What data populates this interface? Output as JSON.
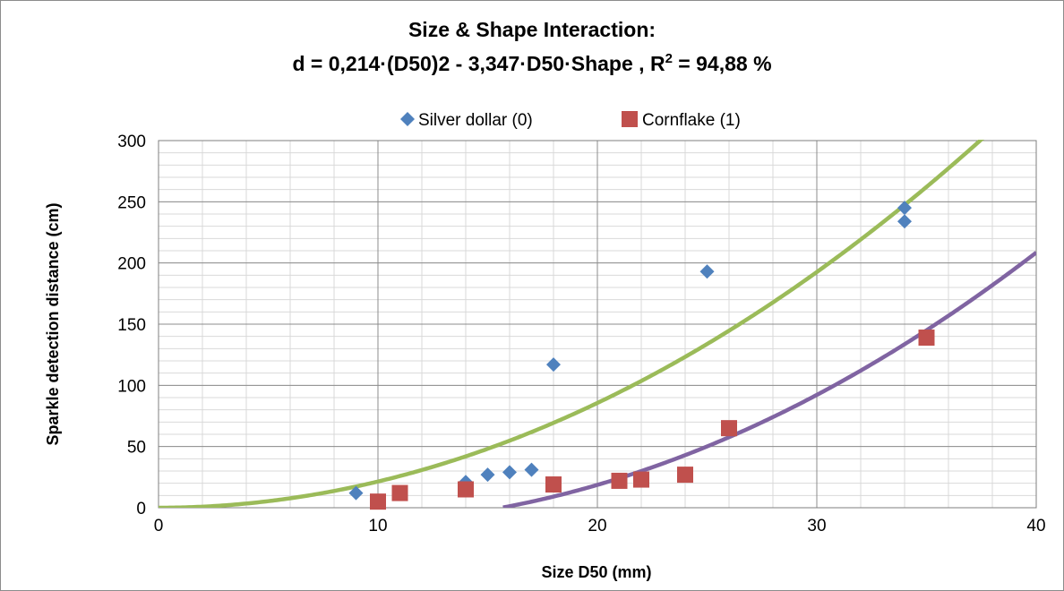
{
  "chart_data": {
    "type": "scatter",
    "title_line1": "Size & Shape Interaction:",
    "title_line2_main": "d = 0,214·(D50)2 - 3,347·D50·Shape , R",
    "title_line2_sup": "2",
    "title_line2_end": " = 94,88 %",
    "xlabel": "Size D50 (mm)",
    "ylabel": "Sparkle detection distance (cm)",
    "xlim": [
      0,
      40
    ],
    "ylim": [
      0,
      300
    ],
    "xticks": [
      0,
      10,
      20,
      30,
      40
    ],
    "yticks": [
      0,
      50,
      100,
      150,
      200,
      250,
      300
    ],
    "grid": true,
    "legend_position": "top",
    "series": [
      {
        "name": "Silver dollar (0)",
        "marker": "diamond",
        "color": "#4f81bd",
        "points": [
          [
            9,
            12
          ],
          [
            14,
            21
          ],
          [
            15,
            27
          ],
          [
            16,
            29
          ],
          [
            17,
            31
          ],
          [
            18,
            117
          ],
          [
            25,
            193
          ],
          [
            34,
            245
          ],
          [
            34,
            234
          ]
        ]
      },
      {
        "name": "Cornflake (1)",
        "marker": "square",
        "color": "#c0504d",
        "points": [
          [
            10,
            5
          ],
          [
            11,
            12
          ],
          [
            14,
            15
          ],
          [
            18,
            19
          ],
          [
            21,
            22
          ],
          [
            22,
            23
          ],
          [
            24,
            27
          ],
          [
            26,
            65
          ],
          [
            35,
            139
          ]
        ]
      }
    ],
    "fit_curves": [
      {
        "series": "Silver dollar (0)",
        "color": "#9bbb59",
        "a": 0.214,
        "b": 0
      },
      {
        "series": "Cornflake (1)",
        "color": "#8064a2",
        "a": 0.214,
        "b": -3.347
      }
    ]
  }
}
